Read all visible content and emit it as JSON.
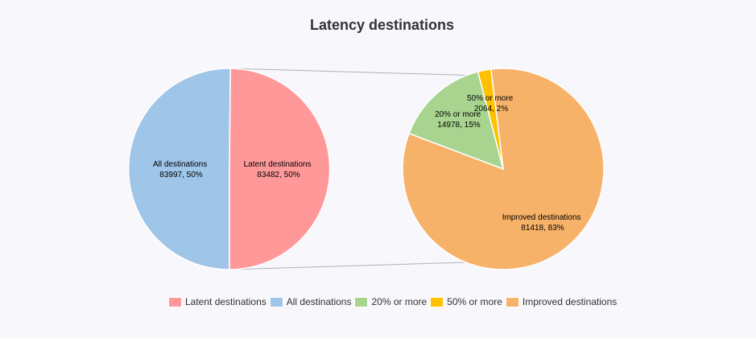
{
  "chart_data": {
    "type": "pie",
    "title": "Latency destinations",
    "pies": [
      {
        "slices": [
          {
            "label": "All destinations",
            "value": 83997,
            "percent": "50%",
            "color": "#9fc5e8"
          },
          {
            "label": "Latent destinations",
            "value": 83482,
            "percent": "50%",
            "color": "#ff9999"
          }
        ]
      },
      {
        "slices": [
          {
            "label": "Improved destinations",
            "value": 81418,
            "percent": "83%",
            "color": "#f7b269"
          },
          {
            "label": "20% or more",
            "value": 14978,
            "percent": "15%",
            "color": "#a8d48f"
          },
          {
            "label": "50% or more",
            "value": 2064,
            "percent": "2%",
            "color": "#ffc000"
          }
        ]
      }
    ],
    "slice_labels": [
      {
        "name": "All destinations",
        "value_text": "83997, 50%"
      },
      {
        "name": "Latent destinations",
        "value_text": "83482, 50%"
      },
      {
        "name": "20% or more",
        "value_text": "14978, 15%"
      },
      {
        "name": "50% or more",
        "value_text": "2064, 2%"
      },
      {
        "name": "Improved destinations",
        "value_text": "81418, 83%"
      }
    ],
    "legend": [
      {
        "label": "Latent destinations",
        "color": "#ff9999"
      },
      {
        "label": "All destinations",
        "color": "#9fc5e8"
      },
      {
        "label": "20% or more",
        "color": "#a8d48f"
      },
      {
        "label": "50% or more",
        "color": "#ffc000"
      },
      {
        "label": "Improved destinations",
        "color": "#f7b269"
      }
    ],
    "legend_position": "bottom"
  }
}
